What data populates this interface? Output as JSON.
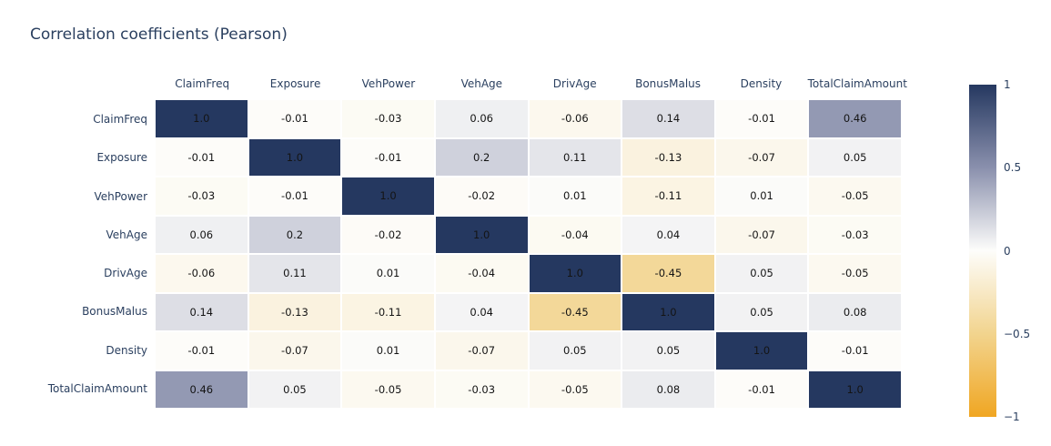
{
  "title": "Correlation coefficients (Pearson)",
  "colors": {
    "background": "#ffffff",
    "title_text": "#2a3f5f",
    "axis_label_text": "#2a3f5f",
    "cell_text": "#141414"
  },
  "chart_data": {
    "type": "heatmap",
    "title": "Correlation coefficients (Pearson)",
    "x_categories": [
      "ClaimFreq",
      "Exposure",
      "VehPower",
      "VehAge",
      "DrivAge",
      "BonusMalus",
      "Density",
      "TotalClaimAmount"
    ],
    "y_categories": [
      "ClaimFreq",
      "Exposure",
      "VehPower",
      "VehAge",
      "DrivAge",
      "BonusMalus",
      "Density",
      "TotalClaimAmount"
    ],
    "values": [
      [
        1.0,
        -0.01,
        -0.03,
        0.06,
        -0.06,
        0.14,
        -0.01,
        0.46
      ],
      [
        -0.01,
        1.0,
        -0.01,
        0.2,
        0.11,
        -0.13,
        -0.07,
        0.05
      ],
      [
        -0.03,
        -0.01,
        1.0,
        -0.02,
        0.01,
        -0.11,
        0.01,
        -0.05
      ],
      [
        0.06,
        0.2,
        -0.02,
        1.0,
        -0.04,
        0.04,
        -0.07,
        -0.03
      ],
      [
        -0.06,
        0.11,
        0.01,
        -0.04,
        1.0,
        -0.45,
        0.05,
        -0.05
      ],
      [
        0.14,
        -0.13,
        -0.11,
        0.04,
        -0.45,
        1.0,
        0.05,
        0.08
      ],
      [
        -0.01,
        -0.07,
        0.01,
        -0.07,
        0.05,
        0.05,
        1.0,
        -0.01
      ],
      [
        0.46,
        0.05,
        -0.05,
        -0.03,
        -0.05,
        0.08,
        -0.01,
        1.0
      ]
    ],
    "cell_labels": [
      [
        "1.0",
        "-0.01",
        "-0.03",
        "0.06",
        "-0.06",
        "0.14",
        "-0.01",
        "0.46"
      ],
      [
        "-0.01",
        "1.0",
        "-0.01",
        "0.2",
        "0.11",
        "-0.13",
        "-0.07",
        "0.05"
      ],
      [
        "-0.03",
        "-0.01",
        "1.0",
        "-0.02",
        "0.01",
        "-0.11",
        "0.01",
        "-0.05"
      ],
      [
        "0.06",
        "0.2",
        "-0.02",
        "1.0",
        "-0.04",
        "0.04",
        "-0.07",
        "-0.03"
      ],
      [
        "-0.06",
        "0.11",
        "0.01",
        "-0.04",
        "1.0",
        "-0.45",
        "0.05",
        "-0.05"
      ],
      [
        "0.14",
        "-0.13",
        "-0.11",
        "0.04",
        "-0.45",
        "1.0",
        "0.05",
        "0.08"
      ],
      [
        "-0.01",
        "-0.07",
        "0.01",
        "-0.07",
        "0.05",
        "0.05",
        "1.0",
        "-0.01"
      ],
      [
        "0.46",
        "0.05",
        "-0.05",
        "-0.03",
        "-0.05",
        "0.08",
        "-0.01",
        "1.0"
      ]
    ],
    "zmin": -1,
    "zmax": 1,
    "grid": false,
    "legend_position": "right",
    "colorscale": [
      {
        "value": -1,
        "color": "#f0a622"
      },
      {
        "value": -0.5,
        "color": "#f2d48e"
      },
      {
        "value": 0,
        "color": "#fdfdfb"
      },
      {
        "value": 0.5,
        "color": "#8a90ad"
      },
      {
        "value": 1,
        "color": "#253860"
      }
    ],
    "colorbar_ticks": [
      {
        "value": 1,
        "label": "1"
      },
      {
        "value": 0.5,
        "label": "0.5"
      },
      {
        "value": 0,
        "label": "0"
      },
      {
        "value": -0.5,
        "label": "−0.5"
      },
      {
        "value": -1,
        "label": "−1"
      }
    ]
  }
}
